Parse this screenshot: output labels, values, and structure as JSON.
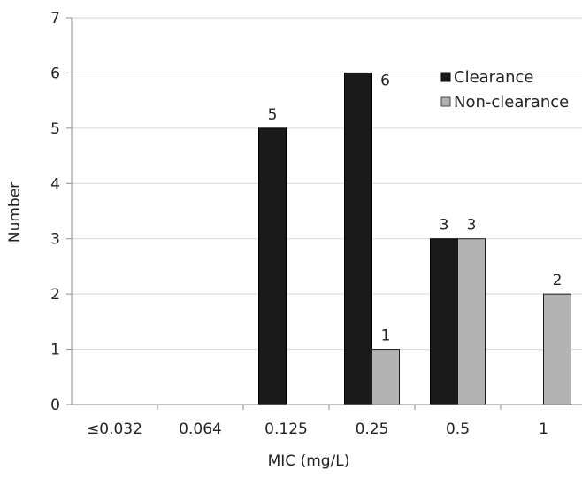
{
  "chart_data": {
    "type": "bar",
    "title": "",
    "xlabel": "MIC (mg/L)",
    "ylabel": "Number",
    "ylim": [
      0,
      7
    ],
    "yticks": [
      "0",
      "1",
      "2",
      "3",
      "4",
      "5",
      "6",
      "7"
    ],
    "categories": [
      "≤0.032",
      "0.064",
      "0.125",
      "0.25",
      "0.5",
      "1"
    ],
    "series": [
      {
        "name": "Clearance",
        "color": "#1a1a1a",
        "values": [
          0,
          0,
          5,
          6,
          3,
          0
        ],
        "labels": [
          "",
          "",
          "5",
          "6",
          "3",
          ""
        ]
      },
      {
        "name": "Non-clearance",
        "color": "#b3b3b3",
        "values": [
          0,
          0,
          0,
          1,
          3,
          2
        ],
        "labels": [
          "",
          "",
          "",
          "1",
          "3",
          "2"
        ]
      }
    ],
    "grid": true,
    "legend_position": "top-right"
  }
}
